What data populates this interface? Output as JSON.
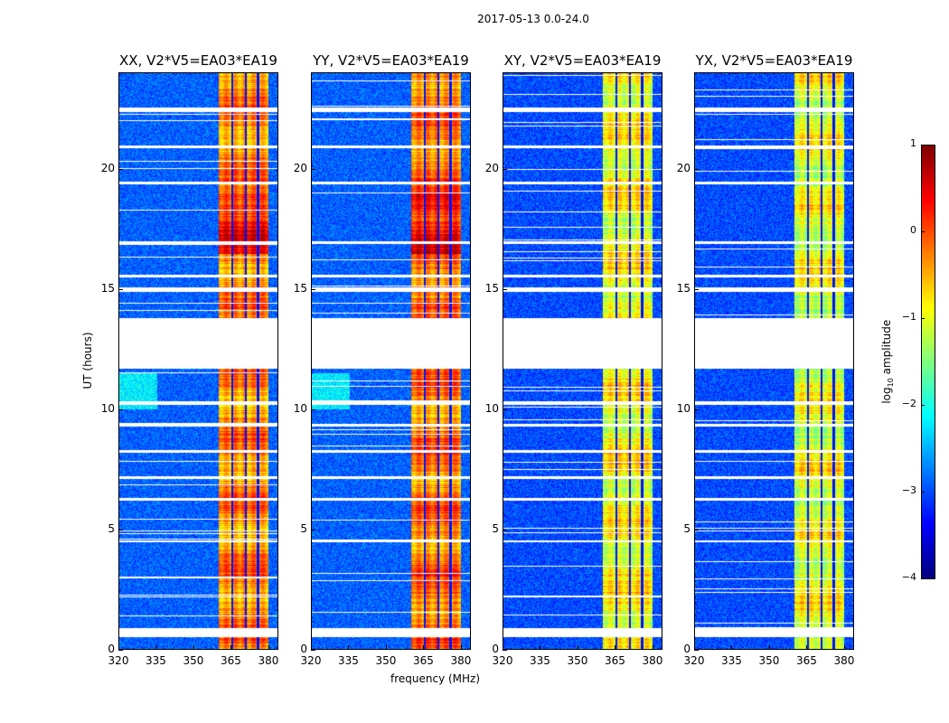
{
  "chart_data": {
    "type": "heatmap",
    "title": "2017-05-13 0.0-24.0",
    "xlabel": "frequency (MHz)",
    "ylabel": "UT (hours)",
    "xlim": [
      320,
      384
    ],
    "ylim": [
      0,
      24
    ],
    "xticks": [
      "320",
      "335",
      "350",
      "365",
      "380"
    ],
    "xtick_values": [
      320,
      335,
      350,
      365,
      380
    ],
    "yticks": [
      "0",
      "5",
      "10",
      "15",
      "20"
    ],
    "ytick_values": [
      0,
      5,
      10,
      15,
      20
    ],
    "panels": [
      {
        "title": "XX, V2*V5=EA03*EA19",
        "band_level": -0.3,
        "bg_level": -2.9
      },
      {
        "title": "YY, V2*V5=EA03*EA19",
        "band_level": -0.2,
        "bg_level": -2.9
      },
      {
        "title": "XY, V2*V5=EA03*EA19",
        "band_level": -0.9,
        "bg_level": -3.0
      },
      {
        "title": "YX, V2*V5=EA03*EA19",
        "band_level": -1.0,
        "bg_level": -3.0
      }
    ],
    "rfi_band_mhz": [
      360,
      380
    ],
    "flagged_hours": [
      [
        0.5,
        0.9
      ],
      [
        11.7,
        13.8
      ],
      [
        10.2,
        10.35
      ],
      [
        4.45,
        4.55
      ],
      [
        6.2,
        6.3
      ],
      [
        7.1,
        7.2
      ],
      [
        8.2,
        8.3
      ],
      [
        9.3,
        9.4
      ],
      [
        14.9,
        15.1
      ],
      [
        15.5,
        15.6
      ],
      [
        16.9,
        17.0
      ],
      [
        19.4,
        19.5
      ],
      [
        20.9,
        21.0
      ],
      [
        22.4,
        22.6
      ]
    ],
    "colorbar": {
      "label": "log10 amplitude",
      "label_main": "log",
      "label_sub": "10",
      "label_rest": " amplitude",
      "colormap": "jet",
      "clim": [
        -4,
        1
      ],
      "ticks": [
        "1",
        "0",
        "−1",
        "−2",
        "−3",
        "−4"
      ],
      "tick_values": [
        1,
        0,
        -1,
        -2,
        -3,
        -4
      ]
    }
  }
}
